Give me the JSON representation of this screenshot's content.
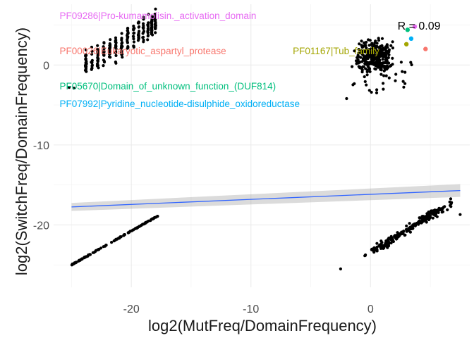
{
  "chart_data": {
    "type": "scatter",
    "title": "",
    "xlabel": "log2(MutFreq/DomainFrequency)",
    "ylabel": "log2(SwitchFreq/DomainFrequency)",
    "xlim": [
      -26.5,
      8.3
    ],
    "ylim": [
      -27.8,
      7.6
    ],
    "x_ticks": [
      -20,
      -10,
      0
    ],
    "y_ticks": [
      0,
      -10,
      -20
    ],
    "x_tick_labels": [
      "-20",
      "-10",
      "0"
    ],
    "y_tick_labels": [
      "0",
      "-10",
      "-20"
    ],
    "grid": true,
    "trend_line": {
      "x": [
        -25,
        7.5
      ],
      "y": [
        -17.75,
        -15.7
      ],
      "color": "#3366FF",
      "band": 0.5
    },
    "r_label": {
      "text": "R = 0.09",
      "x": 4.5,
      "y": 4.6
    },
    "annotations": [
      {
        "text": "PF09286|Pro-kumamolisin._activation_domain",
        "x": -26.0,
        "y": 6.2,
        "color": "#E76BF3"
      },
      {
        "text": "PF00026|Eukaryotic_aspartyl_protease",
        "x": -26.0,
        "y": 1.8,
        "color": "#F8766D"
      },
      {
        "text": "PF01167|Tub_family",
        "x": -6.5,
        "y": 1.8,
        "color": "#A3A500"
      },
      {
        "text": "PF05670|Domain_of_unknown_function_(DUF814)",
        "x": -26.0,
        "y": -2.6,
        "color": "#00BF7D"
      },
      {
        "text": "PF07992|Pyridine_nucleotide-disulphide_oxidoreductase",
        "x": -26.0,
        "y": -4.8,
        "color": "#00B0F6"
      }
    ],
    "highlight_points": [
      {
        "x": 3.4,
        "y": 3.3,
        "color": "#00B0F6"
      },
      {
        "x": 4.6,
        "y": 2.0,
        "color": "#F8766D"
      },
      {
        "x": 3.1,
        "y": 4.4,
        "color": "#00BF7D"
      },
      {
        "x": 3.7,
        "y": 4.8,
        "color": "#E76BF3"
      },
      {
        "x": 3.0,
        "y": 2.6,
        "color": "#A3A500"
      }
    ],
    "point_color": "#000000"
  }
}
